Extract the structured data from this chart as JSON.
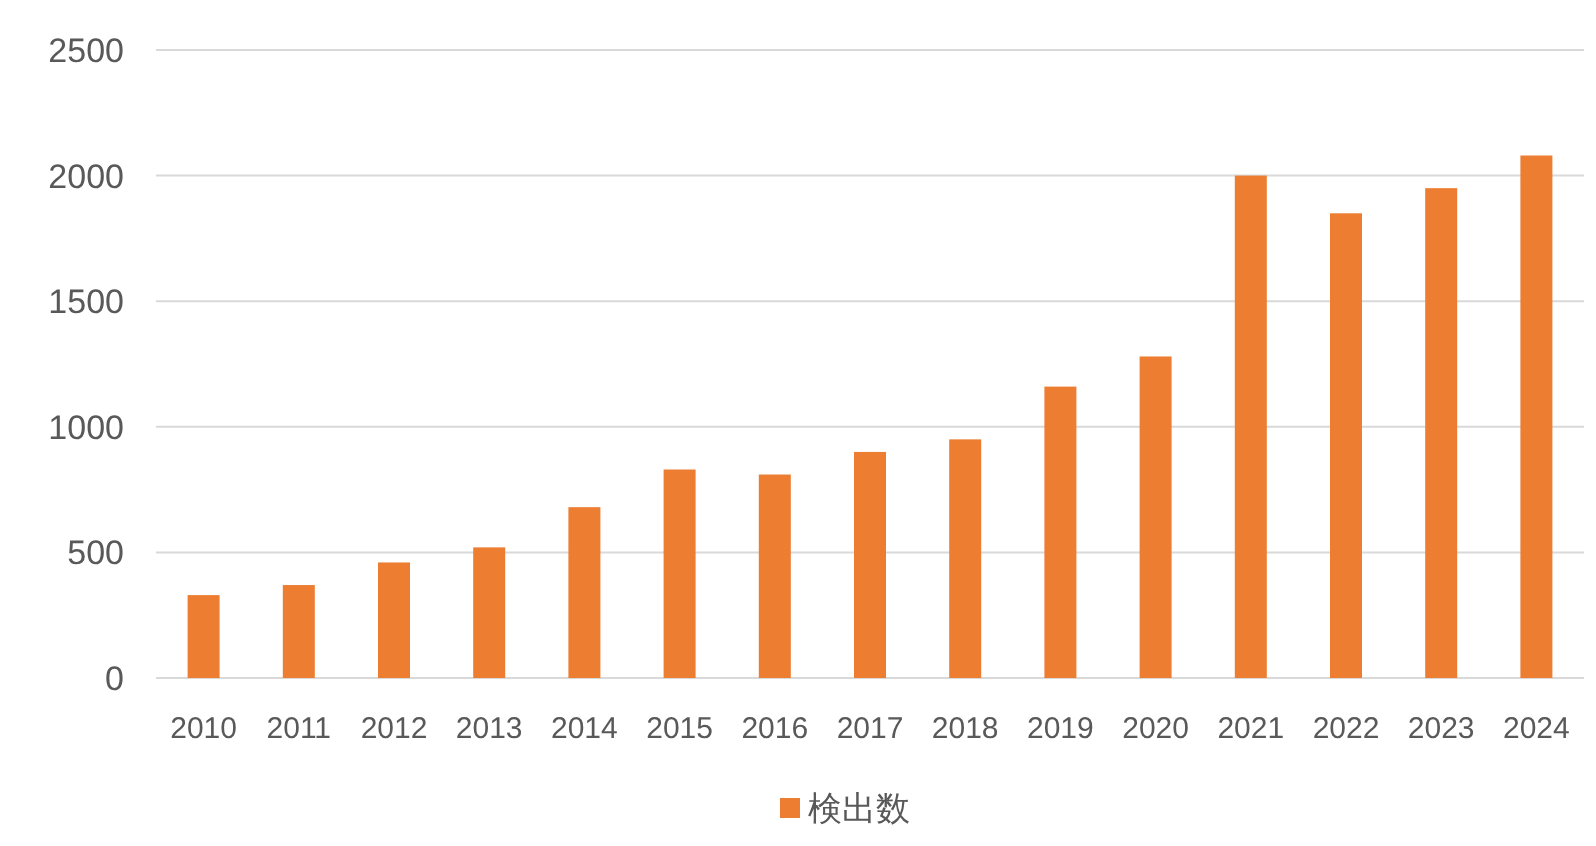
{
  "chart_data": {
    "type": "bar",
    "categories": [
      "2010",
      "2011",
      "2012",
      "2013",
      "2014",
      "2015",
      "2016",
      "2017",
      "2018",
      "2019",
      "2020",
      "2021",
      "2022",
      "2023",
      "2024"
    ],
    "series": [
      {
        "name": "検出数",
        "color": "#ed7d31",
        "values": [
          330,
          370,
          460,
          520,
          680,
          830,
          810,
          900,
          950,
          1160,
          1280,
          2000,
          1850,
          1950,
          2080
        ]
      }
    ],
    "ylim": [
      0,
      2500
    ],
    "yticks": [
      0,
      500,
      1000,
      1500,
      2000,
      2500
    ],
    "grid": "y",
    "legend": "bottom"
  }
}
